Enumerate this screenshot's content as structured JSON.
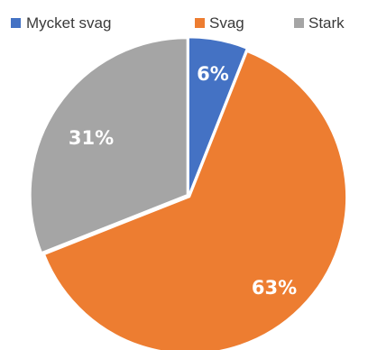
{
  "chart_data": {
    "type": "pie",
    "title": "",
    "legend_position": "top",
    "series": [
      {
        "name": "Mycket svag",
        "value": 6,
        "label": "6%",
        "color": "#4472c4"
      },
      {
        "name": "Svag",
        "value": 63,
        "label": "63%",
        "color": "#ed7d31"
      },
      {
        "name": "Stark",
        "value": 31,
        "label": "31%",
        "color": "#a5a5a5"
      }
    ]
  }
}
